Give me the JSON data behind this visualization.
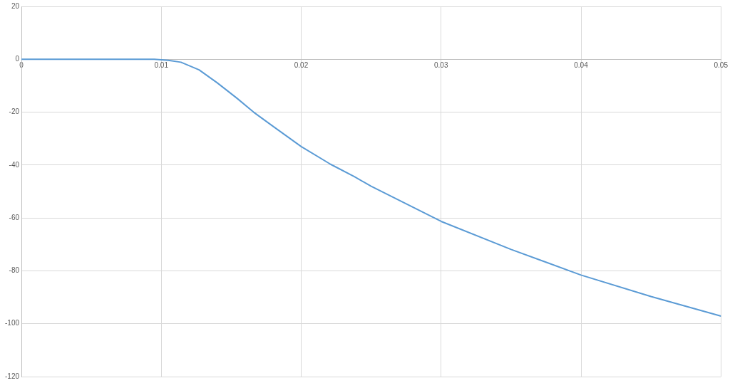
{
  "chart_data": {
    "type": "line",
    "x": [
      0,
      0.005,
      0.0095,
      0.0105,
      0.0114,
      0.0127,
      0.014,
      0.0154,
      0.0166,
      0.018,
      0.02,
      0.0221,
      0.0238,
      0.025,
      0.03,
      0.035,
      0.04,
      0.045,
      0.05
    ],
    "series": [
      {
        "color": "#5b9bd5",
        "values": [
          0,
          0,
          0,
          -0.4,
          -1.1,
          -4,
          -8.9,
          -14.7,
          -20,
          -25.4,
          -33,
          -39.7,
          -44.4,
          -48,
          -61.3,
          -71.9,
          -81.6,
          -89.7,
          -97.1
        ]
      }
    ],
    "xlim": [
      0,
      0.05
    ],
    "xticks": [
      0,
      0.01,
      0.02,
      0.03,
      0.04,
      0.05
    ],
    "ylim": [
      -120,
      20
    ],
    "yticks": [
      -120,
      -100,
      -80,
      -60,
      -40,
      -20,
      0,
      20
    ],
    "grid": true,
    "legend": false,
    "marker": "none",
    "line_style": "solid"
  }
}
